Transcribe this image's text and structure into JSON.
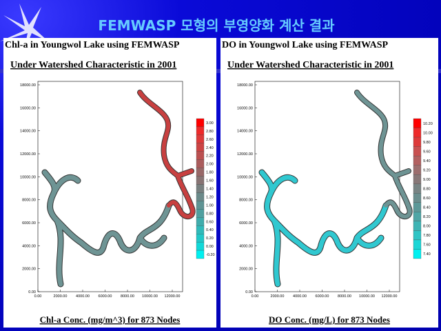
{
  "slide": {
    "title": "FEMWASP 모형의 부영양화 계산 결과"
  },
  "panels": [
    {
      "title": "Chl-a in Youngwol Lake using FEMWASP",
      "subtitle": "Under Watershed Characteristic in 2001",
      "footer": "Chl-a Conc. (mg/m^3) for 873 Nodes",
      "yticks": [
        "0.00",
        "2000.00",
        "4000.00",
        "6000.00",
        "8000.00",
        "10000.00",
        "12000.00",
        "14000.00",
        "16000.00",
        "18000.00"
      ],
      "xticks": [
        "0.00",
        "2000.00",
        "4000.00",
        "6000.00",
        "8000.00",
        "10000.00",
        "12000.00"
      ],
      "colorbar": [
        "3.00",
        "2.80",
        "2.60",
        "2.40",
        "2.20",
        "2.00",
        "1.80",
        "1.60",
        "1.40",
        "1.20",
        "1.00",
        "0.80",
        "0.60",
        "0.40",
        "0.20",
        "0.00",
        "-0.20"
      ]
    },
    {
      "title": "DO in Youngwol Lake using FEMWASP",
      "subtitle": "Under Watershed Characteristic in 2001",
      "footer": "DO Conc. (mg/L) for 873 Nodes",
      "yticks": [
        "0.00",
        "2000.00",
        "4000.00",
        "6000.00",
        "8000.00",
        "10000.00",
        "12000.00",
        "14000.00",
        "16000.00",
        "18000.00"
      ],
      "xticks": [
        "0.00",
        "2000.00",
        "4000.00",
        "6000.00",
        "8000.00",
        "10000.00",
        "12000.00"
      ],
      "colorbar": [
        "10.20",
        "10.00",
        "9.80",
        "9.60",
        "9.40",
        "9.20",
        "9.00",
        "8.80",
        "8.60",
        "8.40",
        "8.20",
        "8.00",
        "7.80",
        "7.60",
        "7.40"
      ]
    }
  ]
}
